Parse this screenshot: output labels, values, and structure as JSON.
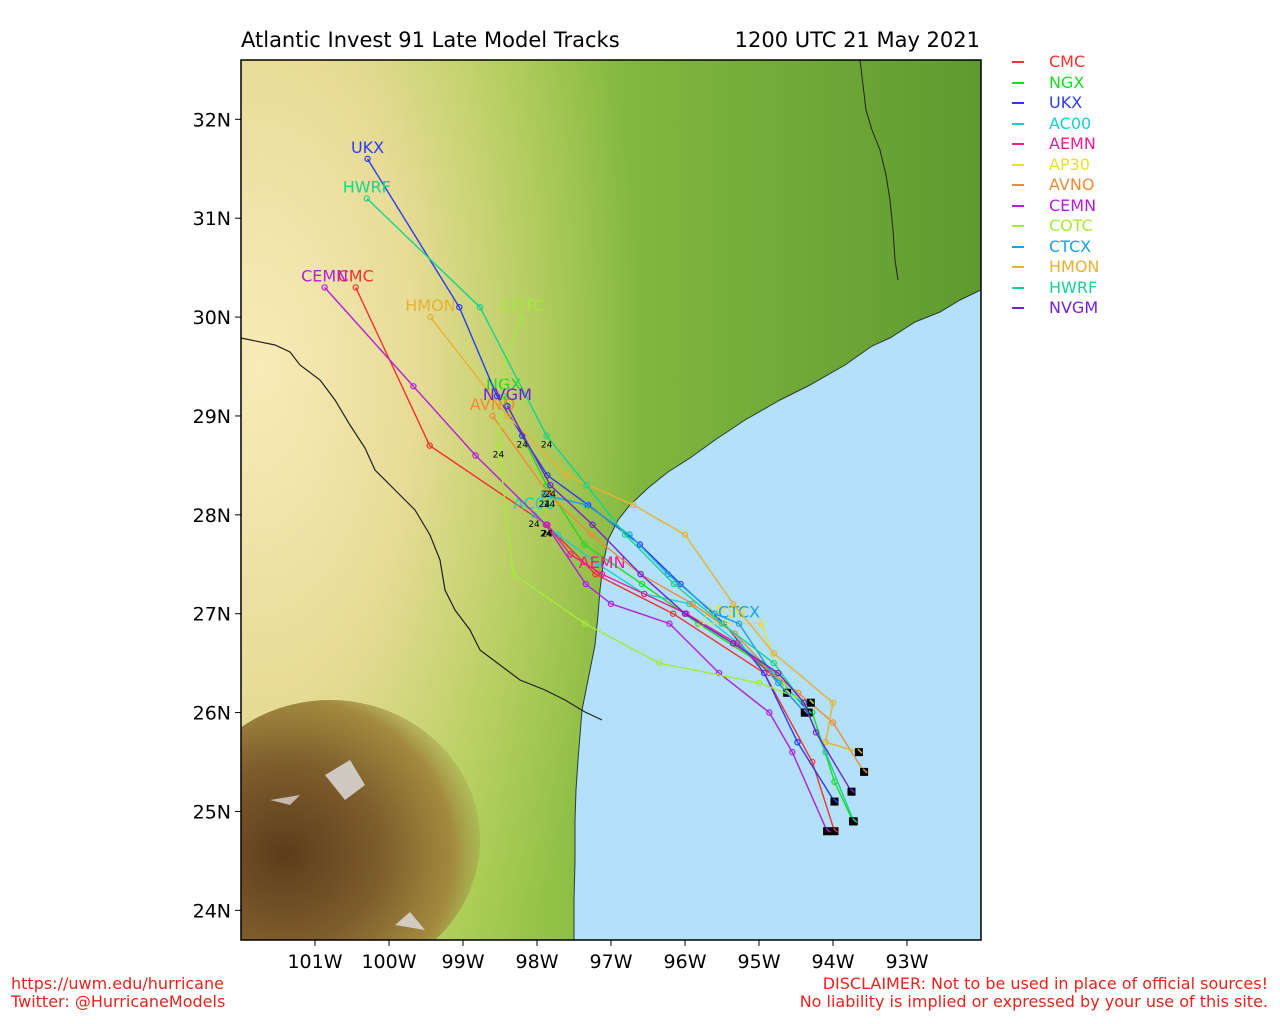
{
  "title": "Atlantic Invest 91 Late Model Tracks",
  "valid_time": "1200 UTC 21 May 2021",
  "map": {
    "lon_range": [
      -102.0,
      -92.0
    ],
    "lat_range": [
      23.7,
      32.6
    ],
    "x_ticks": [
      {
        "lon": -101,
        "label": "101W"
      },
      {
        "lon": -100,
        "label": "100W"
      },
      {
        "lon": -99,
        "label": "99W"
      },
      {
        "lon": -98,
        "label": "98W"
      },
      {
        "lon": -97,
        "label": "97W"
      },
      {
        "lon": -96,
        "label": "96W"
      },
      {
        "lon": -95,
        "label": "95W"
      },
      {
        "lon": -94,
        "label": "94W"
      },
      {
        "lon": -93,
        "label": "93W"
      }
    ],
    "y_ticks": [
      {
        "lat": 24,
        "label": "24N"
      },
      {
        "lat": 25,
        "label": "25N"
      },
      {
        "lat": 26,
        "label": "26N"
      },
      {
        "lat": 27,
        "label": "27N"
      },
      {
        "lat": 28,
        "label": "28N"
      },
      {
        "lat": 29,
        "label": "29N"
      },
      {
        "lat": 30,
        "label": "30N"
      },
      {
        "lat": 31,
        "label": "31N"
      },
      {
        "lat": 32,
        "label": "32N"
      }
    ],
    "land_color": "#6fa83a",
    "water_color": "#b3e0fb"
  },
  "hour_label": "24",
  "models": [
    {
      "name": "CMC",
      "color": "#f4312f",
      "track": [
        [
          -93.98,
          24.8
        ],
        [
          -94.28,
          25.5
        ],
        [
          -94.93,
          26.4
        ],
        [
          -96.16,
          27.0
        ],
        [
          -97.21,
          27.4
        ],
        [
          -97.87,
          27.9
        ],
        [
          -99.45,
          28.7
        ],
        [
          -100.45,
          30.3
        ]
      ],
      "tick": [
        -97.87,
        27.9
      ],
      "label": "CMC",
      "label_at": [
        -100.45,
        30.3
      ]
    },
    {
      "name": "NGX",
      "color": "#1cdc1c",
      "track": [
        [
          -93.73,
          24.9
        ],
        [
          -93.98,
          25.3
        ],
        [
          -94.28,
          26.0
        ],
        [
          -94.98,
          26.5
        ],
        [
          -95.82,
          26.9
        ],
        [
          -96.58,
          27.3
        ],
        [
          -97.36,
          27.7
        ],
        [
          -97.87,
          28.3
        ],
        [
          -98.2,
          28.8
        ],
        [
          -98.45,
          29.2
        ]
      ],
      "tick": [
        -97.87,
        28.3
      ],
      "label": "NGX",
      "label_at": [
        -98.45,
        29.2
      ]
    },
    {
      "name": "UKX",
      "color": "#2b3cf0",
      "track": [
        [
          -93.98,
          25.1
        ],
        [
          -94.48,
          25.7
        ],
        [
          -94.93,
          26.4
        ],
        [
          -95.47,
          26.9
        ],
        [
          -96.06,
          27.3
        ],
        [
          -96.61,
          27.7
        ],
        [
          -97.31,
          28.1
        ],
        [
          -97.86,
          28.4
        ],
        [
          -98.2,
          28.8
        ],
        [
          -98.54,
          29.2
        ],
        [
          -99.05,
          30.1
        ],
        [
          -100.29,
          31.6
        ]
      ],
      "tick": [
        -98.2,
        28.8
      ],
      "label": "UKX",
      "label_at": [
        -100.29,
        31.6
      ]
    },
    {
      "name": "AC00",
      "color": "#17d2c8",
      "track": [
        [
          -94.33,
          26.0
        ],
        [
          -94.79,
          26.4
        ],
        [
          -95.28,
          26.7
        ],
        [
          -95.94,
          27.1
        ],
        [
          -96.55,
          27.2
        ],
        [
          -97.17,
          27.5
        ],
        [
          -97.72,
          27.8
        ],
        [
          -98.04,
          28.0
        ]
      ],
      "tick": [
        -98.04,
        28.0
      ],
      "label": "AC00",
      "label_at": [
        -98.04,
        28.0
      ]
    },
    {
      "name": "AEMN",
      "color": "#f01d8e",
      "track": [
        [
          -94.38,
          26.0
        ],
        [
          -94.86,
          26.4
        ],
        [
          -95.3,
          26.7
        ],
        [
          -95.98,
          27.0
        ],
        [
          -96.55,
          27.2
        ],
        [
          -97.12,
          27.4
        ],
        [
          -97.55,
          27.6
        ],
        [
          -97.86,
          27.9
        ]
      ],
      "tick": [
        -97.86,
        27.9
      ],
      "label": "AEMN",
      "label_at": [
        -97.12,
        27.4
      ]
    },
    {
      "name": "AP30",
      "color": "#e8e033",
      "track": [
        [
          -94.62,
          26.2
        ],
        [
          -94.97,
          26.9
        ],
        [
          -95.46,
          26.9
        ],
        [
          -95.78,
          26.9
        ]
      ],
      "tick": null,
      "label": "AP30",
      "label_at": [
        -95.46,
        26.9
      ]
    },
    {
      "name": "AVNO",
      "color": "#f08a36",
      "track": [
        [
          -93.58,
          25.4
        ],
        [
          -94.0,
          25.9
        ],
        [
          -94.47,
          26.2
        ],
        [
          -94.82,
          26.4
        ],
        [
          -95.33,
          26.8
        ],
        [
          -95.9,
          27.1
        ],
        [
          -96.6,
          27.4
        ],
        [
          -97.27,
          27.8
        ],
        [
          -97.83,
          28.2
        ],
        [
          -98.6,
          29.0
        ]
      ],
      "tick": [
        -97.83,
        28.2
      ],
      "label": "AVNO",
      "label_at": [
        -98.6,
        29.0
      ]
    },
    {
      "name": "CEMN",
      "color": "#b51ed9",
      "track": [
        [
          -94.08,
          24.8
        ],
        [
          -94.55,
          25.6
        ],
        [
          -94.86,
          26.0
        ],
        [
          -95.54,
          26.4
        ],
        [
          -96.21,
          26.9
        ],
        [
          -97.0,
          27.1
        ],
        [
          -97.34,
          27.3
        ],
        [
          -97.88,
          27.9
        ],
        [
          -98.83,
          28.6
        ],
        [
          -99.67,
          29.3
        ],
        [
          -100.87,
          30.3
        ]
      ],
      "tick": [
        -97.88,
        27.9
      ],
      "label": "CEMN",
      "label_at": [
        -100.87,
        30.3
      ]
    },
    {
      "name": "COTC",
      "color": "#a4ea3b",
      "track": [
        [
          -94.3,
          26.1
        ],
        [
          -95.0,
          26.3
        ],
        [
          -96.35,
          26.5
        ],
        [
          -97.35,
          26.9
        ],
        [
          -98.32,
          27.4
        ],
        [
          -98.52,
          28.7
        ],
        [
          -98.42,
          29.6
        ],
        [
          -98.2,
          30.0
        ]
      ],
      "tick": [
        -98.52,
        28.7
      ],
      "label": "COTC",
      "label_at": [
        -98.2,
        30.0
      ]
    },
    {
      "name": "CTCX",
      "color": "#1ba0e8",
      "track": [
        [
          -94.38,
          26.0
        ],
        [
          -94.74,
          26.3
        ],
        [
          -95.27,
          26.9
        ],
        [
          -95.6,
          27.0
        ],
        [
          -96.23,
          27.4
        ],
        [
          -96.75,
          27.8
        ],
        [
          -97.33,
          28.1
        ],
        [
          -97.9,
          28.2
        ]
      ],
      "tick": [
        -97.9,
        28.2
      ],
      "label": "CTCX",
      "label_at": [
        -95.27,
        26.9
      ]
    },
    {
      "name": "HMON",
      "color": "#e7b232",
      "track": [
        [
          -93.65,
          25.6
        ],
        [
          -94.1,
          25.7
        ],
        [
          -94.0,
          26.1
        ],
        [
          -94.8,
          26.6
        ],
        [
          -95.35,
          27.1
        ],
        [
          -96.0,
          27.8
        ],
        [
          -96.7,
          28.1
        ],
        [
          -97.6,
          28.4
        ],
        [
          -98.4,
          29.0
        ],
        [
          -99.44,
          30.0
        ]
      ],
      "tick": null,
      "label": "HMON",
      "label_at": [
        -99.44,
        30.0
      ]
    },
    {
      "name": "HWRF",
      "color": "#15d48e",
      "track": [
        [
          -93.72,
          24.9
        ],
        [
          -94.1,
          25.6
        ],
        [
          -94.4,
          26.1
        ],
        [
          -94.8,
          26.5
        ],
        [
          -95.5,
          26.9
        ],
        [
          -96.15,
          27.3
        ],
        [
          -96.81,
          27.8
        ],
        [
          -97.33,
          28.3
        ],
        [
          -97.87,
          28.8
        ],
        [
          -98.77,
          30.1
        ],
        [
          -100.3,
          31.2
        ]
      ],
      "tick": [
        -97.87,
        28.8
      ],
      "label": "HWRF",
      "label_at": [
        -100.3,
        31.2
      ]
    },
    {
      "name": "NVGM",
      "color": "#7421d6",
      "track": [
        [
          -93.75,
          25.2
        ],
        [
          -94.23,
          25.8
        ],
        [
          -94.39,
          26.1
        ],
        [
          -94.74,
          26.4
        ],
        [
          -95.35,
          26.7
        ],
        [
          -96.0,
          27.0
        ],
        [
          -96.6,
          27.4
        ],
        [
          -97.25,
          27.9
        ],
        [
          -97.82,
          28.3
        ],
        [
          -98.4,
          29.1
        ]
      ],
      "tick": [
        -97.82,
        28.3
      ],
      "label": "NVGM",
      "label_at": [
        -98.4,
        29.1
      ]
    }
  ],
  "footer": {
    "url": "https://uwm.edu/hurricane",
    "twitter": "Twitter: @HurricaneModels",
    "disclaimer_1": "DISCLAIMER: Not to be used in place of official sources!",
    "disclaimer_2": "No liability is implied or expressed by your use of this site."
  }
}
